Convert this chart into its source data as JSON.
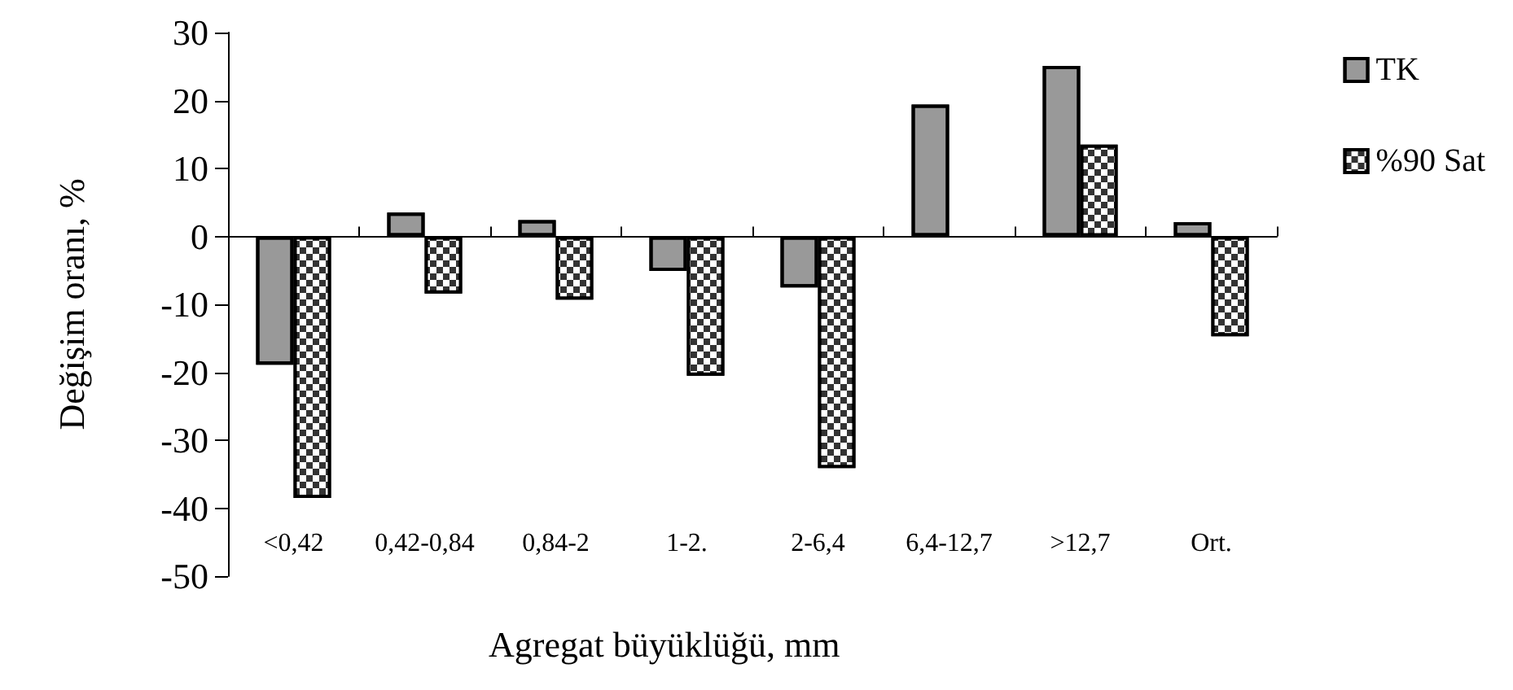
{
  "chart_data": {
    "type": "bar",
    "xlabel": "Agregat büyüklüğü, mm",
    "ylabel": "Değişim oranı, %",
    "categories": [
      "<0,42",
      "0,42-0,84",
      "0,84-2",
      "1-2.",
      "2-6,4",
      "6,4-12,7",
      ">12,7",
      "Ort."
    ],
    "series": [
      {
        "name": "TK",
        "color": "#999999",
        "values": [
          -18.9,
          3.5,
          2.4,
          -5.1,
          -7.5,
          19.4,
          25.1,
          2.1
        ]
      },
      {
        "name": "%90 Sat",
        "color": "#333333",
        "values": [
          -38.5,
          -8.4,
          -9.3,
          -20.5,
          -34.1,
          null,
          13.5,
          -14.7
        ]
      }
    ],
    "ylim": [
      -50,
      30
    ],
    "yticks": [
      -50,
      -40,
      -30,
      -20,
      -10,
      0,
      10,
      20,
      30
    ],
    "legend": "right"
  }
}
